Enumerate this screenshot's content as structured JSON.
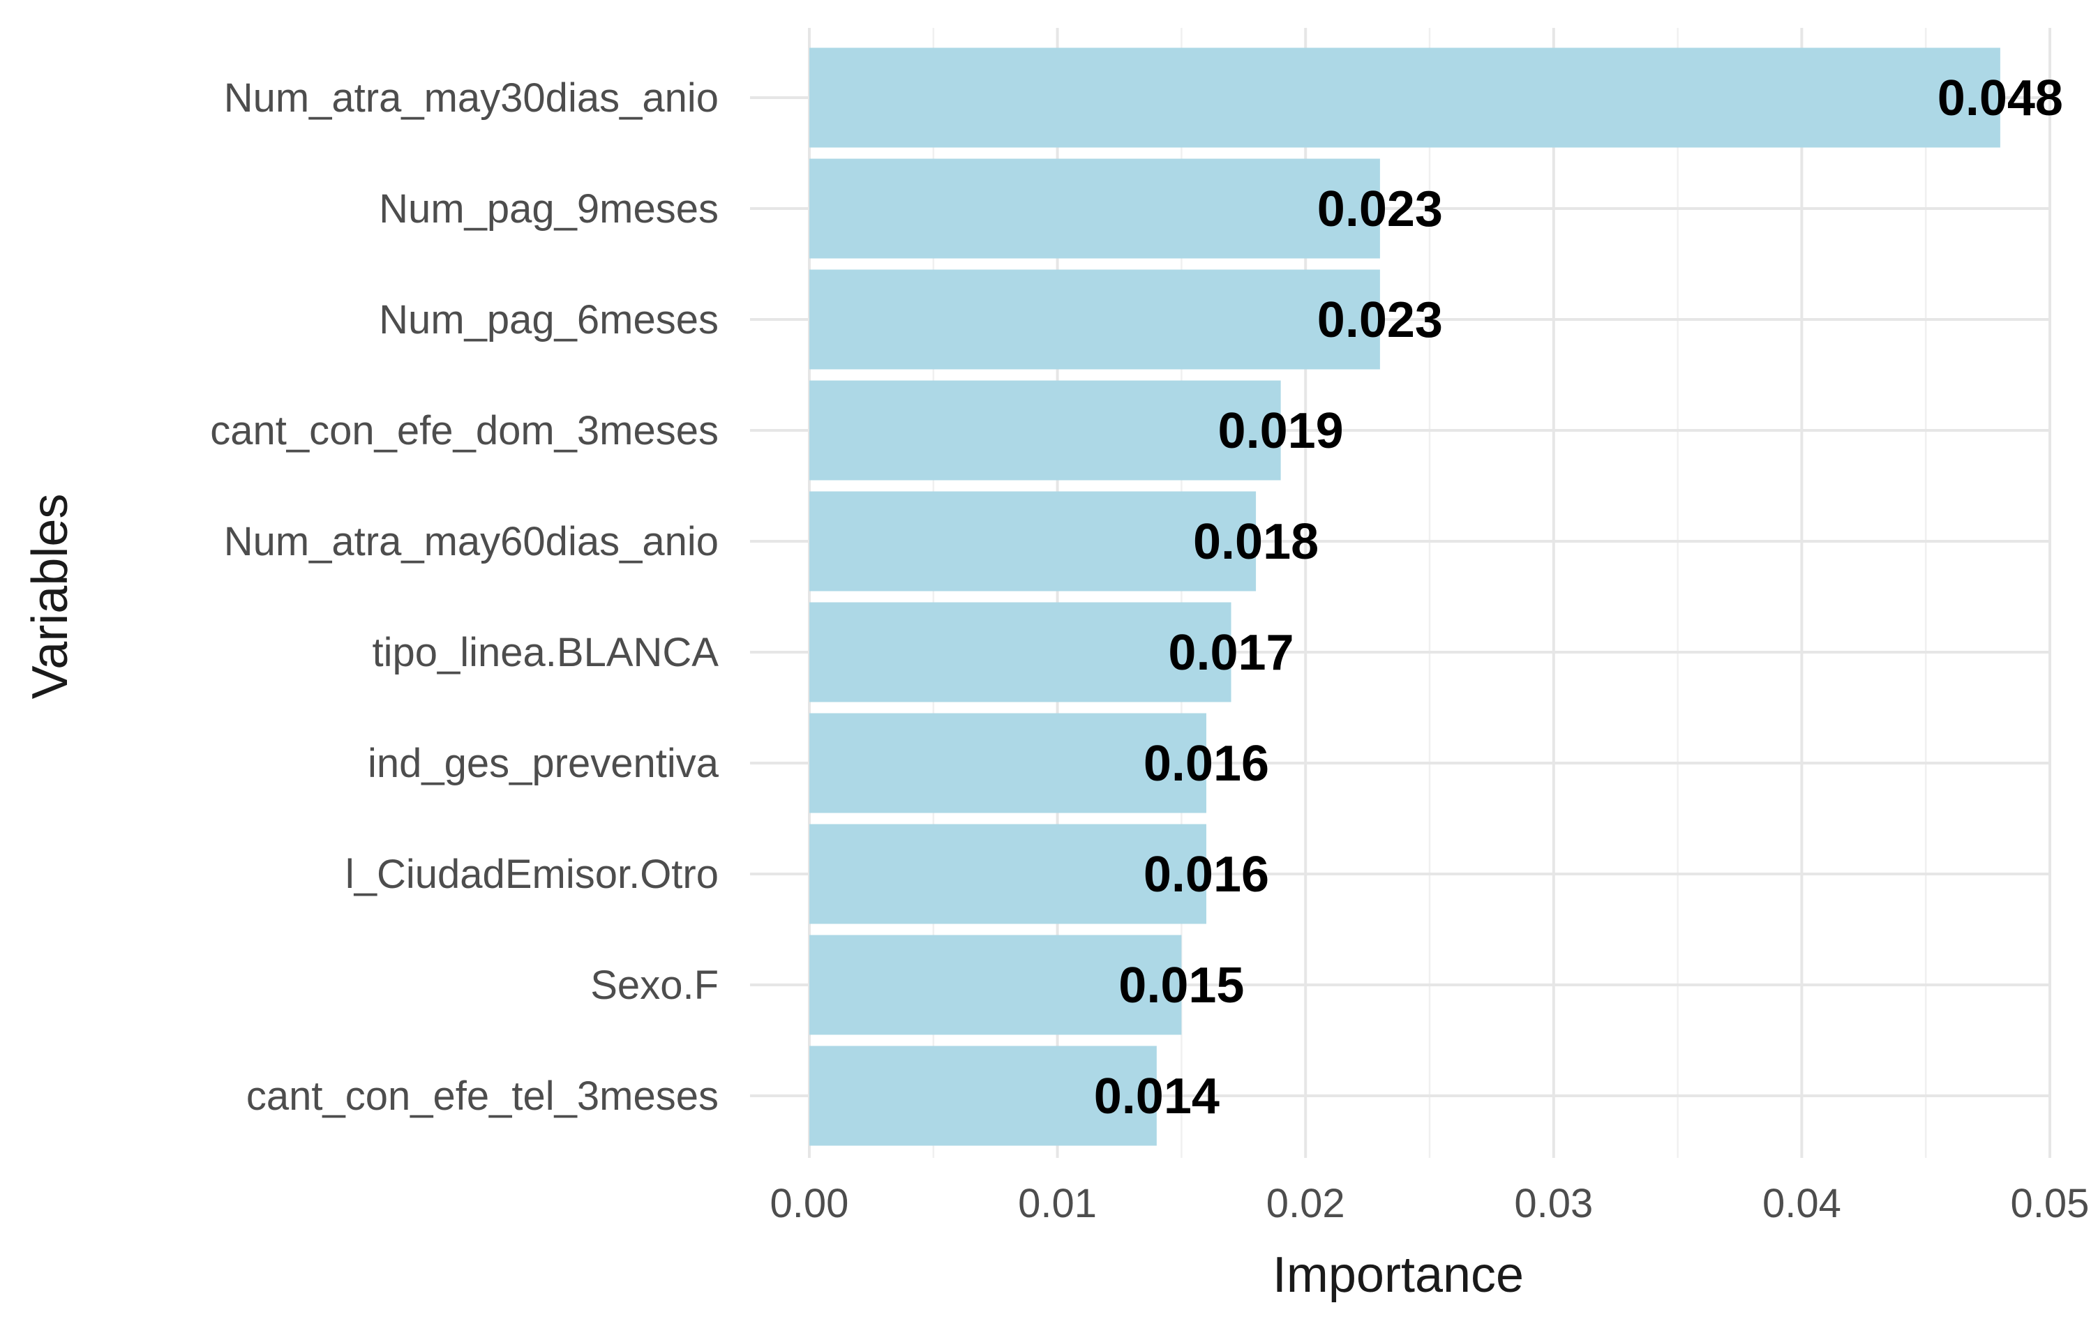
{
  "chart_data": {
    "type": "bar",
    "orientation": "horizontal",
    "categories": [
      "Num_atra_may30dias_anio",
      "Num_pag_9meses",
      "Num_pag_6meses",
      "cant_con_efe_dom_3meses",
      "Num_atra_may60dias_anio",
      "tipo_linea.BLANCA",
      "ind_ges_preventiva",
      "l_CiudadEmisor.Otro",
      "Sexo.F",
      "cant_con_efe_tel_3meses"
    ],
    "values": [
      0.048,
      0.023,
      0.023,
      0.019,
      0.018,
      0.017,
      0.016,
      0.016,
      0.015,
      0.014
    ],
    "data_labels": [
      "0.048",
      "0.023",
      "0.023",
      "0.019",
      "0.018",
      "0.017",
      "0.016",
      "0.016",
      "0.015",
      "0.014"
    ],
    "xlabel": "Importance",
    "ylabel": "Variables",
    "xlim": [
      0,
      0.05
    ],
    "xticks": [
      0,
      0.01,
      0.02,
      0.03,
      0.04,
      0.05
    ],
    "xtick_labels": [
      "0.00",
      "0.01",
      "0.02",
      "0.03",
      "0.04",
      "0.05"
    ],
    "grid": true,
    "bar_color": "#add8e6"
  }
}
